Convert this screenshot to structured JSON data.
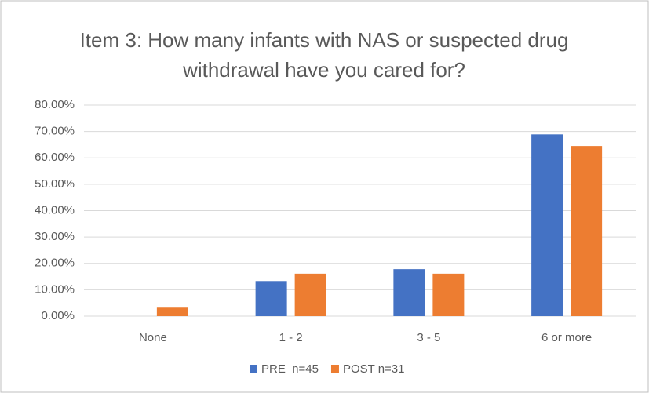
{
  "chart_data": {
    "type": "bar",
    "title": "Item 3: How many infants with NAS or suspected drug withdrawal have you cared for?",
    "categories": [
      "None",
      "1 - 2",
      "3 - 5",
      "6 or more"
    ],
    "series": [
      {
        "name": "PRE  n=45",
        "color": "#4472c4",
        "values": [
          0,
          13.3,
          17.8,
          68.9
        ]
      },
      {
        "name": "POST n=31",
        "color": "#ed7d31",
        "values": [
          3.2,
          16.1,
          16.1,
          64.5
        ]
      }
    ],
    "ylim": [
      0,
      80
    ],
    "yticks": [
      {
        "value": 0,
        "label": "0.00%"
      },
      {
        "value": 10,
        "label": "10.00%"
      },
      {
        "value": 20,
        "label": "20.00%"
      },
      {
        "value": 30,
        "label": "30.00%"
      },
      {
        "value": 40,
        "label": "40.00%"
      },
      {
        "value": 50,
        "label": "50.00%"
      },
      {
        "value": 60,
        "label": "60.00%"
      },
      {
        "value": 70,
        "label": "70.00%"
      },
      {
        "value": 80,
        "label": "80.00%"
      }
    ],
    "grid": true,
    "legend": "bottom"
  }
}
